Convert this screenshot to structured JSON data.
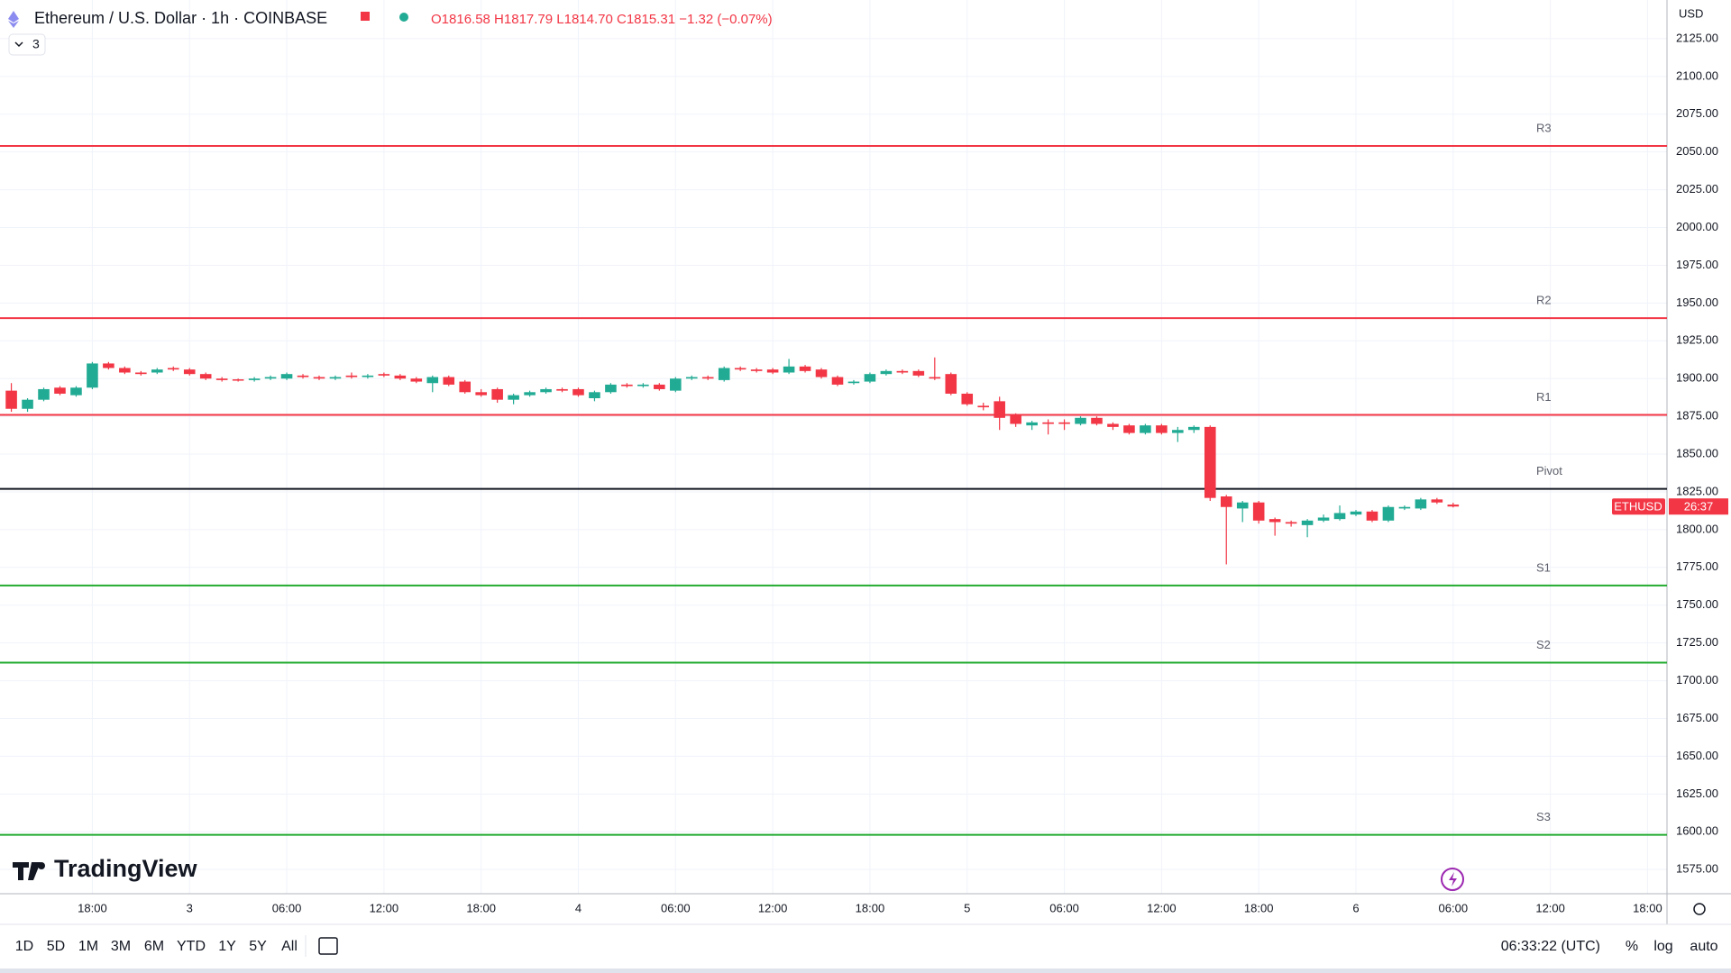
{
  "header": {
    "symbol": "Ethereum / U.S. Dollar · 1h · COINBASE",
    "ohlc": "O1816.58 H1817.79 L1814.70 C1815.31 −1.32 (−0.07%)",
    "indicators": "3",
    "currency": "USD"
  },
  "chart_data": {
    "type": "candlestick",
    "up_color": "#22ab94",
    "down_color": "#f23645",
    "grid": true,
    "xlim": [
      -0.7,
      102.2
    ],
    "ylim": [
      1559,
      2150.6
    ],
    "xticks": [
      {
        "value": 5,
        "label": "18:00"
      },
      {
        "value": 11,
        "label": "3"
      },
      {
        "value": 17,
        "label": "06:00"
      },
      {
        "value": 23,
        "label": "12:00"
      },
      {
        "value": 29,
        "label": "18:00"
      },
      {
        "value": 35,
        "label": "4"
      },
      {
        "value": 41,
        "label": "06:00"
      },
      {
        "value": 47,
        "label": "12:00"
      },
      {
        "value": 53,
        "label": "18:00"
      },
      {
        "value": 59,
        "label": "5"
      },
      {
        "value": 65,
        "label": "06:00"
      },
      {
        "value": 71,
        "label": "12:00"
      },
      {
        "value": 77,
        "label": "18:00"
      },
      {
        "value": 83,
        "label": "6"
      },
      {
        "value": 89,
        "label": "06:00"
      },
      {
        "value": 95,
        "label": "12:00"
      },
      {
        "value": 101,
        "label": "18:00"
      }
    ],
    "yticks": [
      {
        "value": 1575,
        "label": "1575.00"
      },
      {
        "value": 1600,
        "label": "1600.00"
      },
      {
        "value": 1625,
        "label": "1625.00"
      },
      {
        "value": 1650,
        "label": "1650.00"
      },
      {
        "value": 1675,
        "label": "1675.00"
      },
      {
        "value": 1700,
        "label": "1700.00"
      },
      {
        "value": 1725,
        "label": "1725.00"
      },
      {
        "value": 1750,
        "label": "1750.00"
      },
      {
        "value": 1775,
        "label": "1775.00"
      },
      {
        "value": 1800,
        "label": "1800.00"
      },
      {
        "value": 1825,
        "label": "1825.00"
      },
      {
        "value": 1850,
        "label": "1850.00"
      },
      {
        "value": 1875,
        "label": "1875.00"
      },
      {
        "value": 1900,
        "label": "1900.00"
      },
      {
        "value": 1925,
        "label": "1925.00"
      },
      {
        "value": 1950,
        "label": "1950.00"
      },
      {
        "value": 1975,
        "label": "1975.00"
      },
      {
        "value": 2000,
        "label": "2000.00"
      },
      {
        "value": 2025,
        "label": "2025.00"
      },
      {
        "value": 2050,
        "label": "2050.00"
      },
      {
        "value": 2075,
        "label": "2075.00"
      },
      {
        "value": 2100,
        "label": "2100.00"
      },
      {
        "value": 2125,
        "label": "2125.00"
      }
    ],
    "levels": [
      {
        "name": "R3",
        "value": 2054,
        "color": "#f23645"
      },
      {
        "name": "R2",
        "value": 1940,
        "color": "#f23645"
      },
      {
        "name": "R1",
        "value": 1876,
        "color": "#f23645"
      },
      {
        "name": "Pivot",
        "value": 1827,
        "color": "#131722"
      },
      {
        "name": "S1",
        "value": 1763,
        "color": "#22ab30"
      },
      {
        "name": "S2",
        "value": 1712,
        "color": "#22ab30"
      },
      {
        "name": "S3",
        "value": 1598,
        "color": "#22ab30"
      }
    ],
    "last_price": {
      "value": 1815.31,
      "label": "ETHUSD",
      "countdown": "26:37"
    },
    "candles": [
      {
        "open": 1892,
        "high": 1897,
        "low": 1878,
        "close": 1880
      },
      {
        "open": 1880,
        "high": 1887,
        "low": 1878,
        "close": 1886
      },
      {
        "open": 1886,
        "high": 1894,
        "low": 1885,
        "close": 1893
      },
      {
        "open": 1894,
        "high": 1895,
        "low": 1889,
        "close": 1890
      },
      {
        "open": 1889,
        "high": 1895,
        "low": 1888,
        "close": 1894
      },
      {
        "open": 1894,
        "high": 1911,
        "low": 1893,
        "close": 1910
      },
      {
        "open": 1910,
        "high": 1911,
        "low": 1906,
        "close": 1907
      },
      {
        "open": 1907,
        "high": 1908,
        "low": 1903,
        "close": 1904
      },
      {
        "open": 1904,
        "high": 1905,
        "low": 1902,
        "close": 1903
      },
      {
        "open": 1904,
        "high": 1907,
        "low": 1903,
        "close": 1906
      },
      {
        "open": 1907,
        "high": 1908,
        "low": 1905,
        "close": 1906
      },
      {
        "open": 1906,
        "high": 1907,
        "low": 1902,
        "close": 1903
      },
      {
        "open": 1903,
        "high": 1904,
        "low": 1899,
        "close": 1900
      },
      {
        "open": 1900,
        "high": 1901,
        "low": 1898,
        "close": 1899
      },
      {
        "open": 1899.5,
        "high": 1900,
        "low": 1898,
        "close": 1899
      },
      {
        "open": 1899,
        "high": 1901,
        "low": 1898,
        "close": 1900
      },
      {
        "open": 1900,
        "high": 1902,
        "low": 1899,
        "close": 1901
      },
      {
        "open": 1900,
        "high": 1904,
        "low": 1899,
        "close": 1903
      },
      {
        "open": 1902,
        "high": 1903,
        "low": 1900,
        "close": 1901
      },
      {
        "open": 1901,
        "high": 1902,
        "low": 1899,
        "close": 1900
      },
      {
        "open": 1900,
        "high": 1902,
        "low": 1899,
        "close": 1901
      },
      {
        "open": 1902,
        "high": 1904,
        "low": 1900,
        "close": 1901
      },
      {
        "open": 1901,
        "high": 1903,
        "low": 1900,
        "close": 1902
      },
      {
        "open": 1903,
        "high": 1904,
        "low": 1901,
        "close": 1902
      },
      {
        "open": 1902,
        "high": 1903,
        "low": 1899,
        "close": 1900
      },
      {
        "open": 1900,
        "high": 1901,
        "low": 1897,
        "close": 1898
      },
      {
        "open": 1897,
        "high": 1902,
        "low": 1891,
        "close": 1901
      },
      {
        "open": 1901,
        "high": 1902,
        "low": 1895,
        "close": 1896
      },
      {
        "open": 1898,
        "high": 1899,
        "low": 1890,
        "close": 1891
      },
      {
        "open": 1891,
        "high": 1893,
        "low": 1888,
        "close": 1889
      },
      {
        "open": 1893,
        "high": 1894,
        "low": 1884,
        "close": 1886
      },
      {
        "open": 1886,
        "high": 1890,
        "low": 1883,
        "close": 1889
      },
      {
        "open": 1889,
        "high": 1892,
        "low": 1888,
        "close": 1891
      },
      {
        "open": 1891,
        "high": 1894,
        "low": 1890,
        "close": 1893
      },
      {
        "open": 1893,
        "high": 1894,
        "low": 1891,
        "close": 1892
      },
      {
        "open": 1893,
        "high": 1894,
        "low": 1888,
        "close": 1889
      },
      {
        "open": 1887,
        "high": 1892,
        "low": 1885,
        "close": 1891
      },
      {
        "open": 1891,
        "high": 1897,
        "low": 1890,
        "close": 1896
      },
      {
        "open": 1896,
        "high": 1897,
        "low": 1894,
        "close": 1895
      },
      {
        "open": 1895,
        "high": 1897,
        "low": 1894,
        "close": 1896
      },
      {
        "open": 1896,
        "high": 1897,
        "low": 1892,
        "close": 1893
      },
      {
        "open": 1892,
        "high": 1901,
        "low": 1891,
        "close": 1900
      },
      {
        "open": 1900,
        "high": 1902,
        "low": 1899,
        "close": 1901
      },
      {
        "open": 1901,
        "high": 1902,
        "low": 1899,
        "close": 1900
      },
      {
        "open": 1899,
        "high": 1908,
        "low": 1898,
        "close": 1907
      },
      {
        "open": 1907,
        "high": 1908,
        "low": 1905,
        "close": 1906
      },
      {
        "open": 1906,
        "high": 1907,
        "low": 1904,
        "close": 1905
      },
      {
        "open": 1906,
        "high": 1907,
        "low": 1903,
        "close": 1904
      },
      {
        "open": 1904,
        "high": 1913,
        "low": 1903,
        "close": 1908
      },
      {
        "open": 1908,
        "high": 1909,
        "low": 1904,
        "close": 1905
      },
      {
        "open": 1906,
        "high": 1907,
        "low": 1900,
        "close": 1901
      },
      {
        "open": 1901,
        "high": 1902,
        "low": 1895,
        "close": 1896
      },
      {
        "open": 1897,
        "high": 1899,
        "low": 1896,
        "close": 1898
      },
      {
        "open": 1898,
        "high": 1904,
        "low": 1897,
        "close": 1903
      },
      {
        "open": 1903,
        "high": 1906,
        "low": 1902,
        "close": 1905
      },
      {
        "open": 1905,
        "high": 1906,
        "low": 1903,
        "close": 1904
      },
      {
        "open": 1905,
        "high": 1906,
        "low": 1901,
        "close": 1902
      },
      {
        "open": 1901,
        "high": 1914,
        "low": 1899,
        "close": 1900
      },
      {
        "open": 1903,
        "high": 1904,
        "low": 1889,
        "close": 1890
      },
      {
        "open": 1890,
        "high": 1891,
        "low": 1882,
        "close": 1883
      },
      {
        "open": 1882,
        "high": 1884,
        "low": 1879,
        "close": 1881
      },
      {
        "open": 1885,
        "high": 1888,
        "low": 1866,
        "close": 1874
      },
      {
        "open": 1876,
        "high": 1877,
        "low": 1868,
        "close": 1870
      },
      {
        "open": 1869,
        "high": 1872,
        "low": 1866,
        "close": 1871
      },
      {
        "open": 1871,
        "high": 1873,
        "low": 1863,
        "close": 1870
      },
      {
        "open": 1871,
        "high": 1873,
        "low": 1866,
        "close": 1870
      },
      {
        "open": 1870,
        "high": 1875,
        "low": 1869,
        "close": 1874
      },
      {
        "open": 1874,
        "high": 1875,
        "low": 1869,
        "close": 1870
      },
      {
        "open": 1870,
        "high": 1871,
        "low": 1866,
        "close": 1868
      },
      {
        "open": 1869,
        "high": 1870,
        "low": 1863,
        "close": 1864
      },
      {
        "open": 1864,
        "high": 1870,
        "low": 1863,
        "close": 1869
      },
      {
        "open": 1869,
        "high": 1870,
        "low": 1863,
        "close": 1864
      },
      {
        "open": 1864,
        "high": 1868,
        "low": 1858,
        "close": 1866
      },
      {
        "open": 1866,
        "high": 1869,
        "low": 1864,
        "close": 1868
      },
      {
        "open": 1868,
        "high": 1869,
        "low": 1819,
        "close": 1821
      },
      {
        "open": 1822,
        "high": 1823,
        "low": 1777,
        "close": 1815
      },
      {
        "open": 1814,
        "high": 1819,
        "low": 1805,
        "close": 1818
      },
      {
        "open": 1818,
        "high": 1819,
        "low": 1804,
        "close": 1806
      },
      {
        "open": 1807,
        "high": 1808,
        "low": 1796,
        "close": 1805
      },
      {
        "open": 1805,
        "high": 1806,
        "low": 1802,
        "close": 1804
      },
      {
        "open": 1803,
        "high": 1807,
        "low": 1795,
        "close": 1806
      },
      {
        "open": 1806,
        "high": 1810,
        "low": 1805,
        "close": 1808
      },
      {
        "open": 1807,
        "high": 1816,
        "low": 1806,
        "close": 1811
      },
      {
        "open": 1810,
        "high": 1813,
        "low": 1809,
        "close": 1812
      },
      {
        "open": 1812,
        "high": 1813,
        "low": 1805,
        "close": 1806
      },
      {
        "open": 1806,
        "high": 1816,
        "low": 1805,
        "close": 1815
      },
      {
        "open": 1814,
        "high": 1816,
        "low": 1813,
        "close": 1815
      },
      {
        "open": 1814,
        "high": 1821,
        "low": 1813,
        "close": 1820
      },
      {
        "open": 1820,
        "high": 1821,
        "low": 1817,
        "close": 1818
      },
      {
        "open": 1816.58,
        "high": 1817.79,
        "low": 1814.7,
        "close": 1815.31
      }
    ]
  },
  "toolbar": {
    "ranges": [
      "1D",
      "5D",
      "1M",
      "3M",
      "6M",
      "YTD",
      "1Y",
      "5Y",
      "All"
    ],
    "clock": "06:33:22 (UTC)",
    "options": [
      "%",
      "log",
      "auto"
    ]
  },
  "brand": "TradingView"
}
